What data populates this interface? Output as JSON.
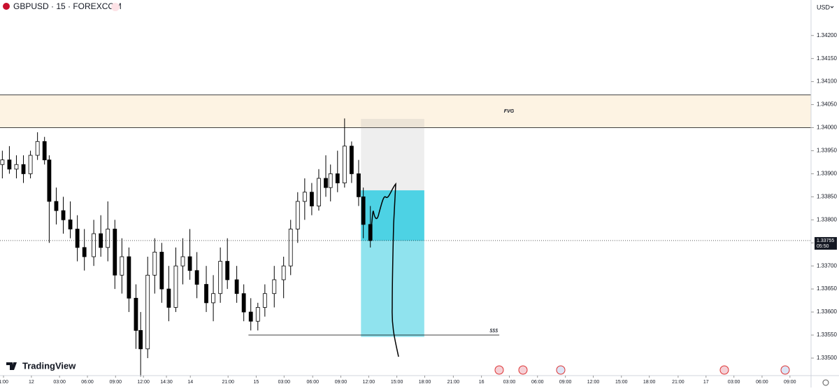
{
  "header": {
    "symbol": "GBPUSD · 15 · FOREXCOM",
    "currency": "USD",
    "brand": "TradingView"
  },
  "chart_data": {
    "type": "candlestick",
    "x": [
      1,
      4,
      7,
      10,
      13,
      16,
      19,
      21,
      24,
      27,
      30,
      33,
      36,
      40,
      43,
      46,
      49,
      52,
      55,
      58,
      60,
      63,
      66,
      69,
      72,
      75,
      78,
      81,
      84,
      88,
      91,
      94,
      97,
      101,
      104,
      107,
      110,
      113,
      117,
      121,
      124,
      127,
      130,
      133,
      136,
      139,
      141,
      144,
      147,
      150,
      153,
      155,
      158
    ],
    "open": [
      1.3392,
      1.3393,
      1.3391,
      1.3392,
      1.339,
      1.3394,
      1.3397,
      1.3393,
      1.3384,
      1.3382,
      1.338,
      1.3378,
      1.3374,
      1.3372,
      1.3377,
      1.3374,
      1.3378,
      1.3368,
      1.3372,
      1.3363,
      1.3356,
      1.3352,
      1.3368,
      1.3373,
      1.3365,
      1.3361,
      1.337,
      1.3372,
      1.3369,
      1.3366,
      1.3362,
      1.3364,
      1.3371,
      1.3367,
      1.3364,
      1.336,
      1.3358,
      1.3361,
      1.3364,
      1.3367,
      1.337,
      1.3378,
      1.3384,
      1.3386,
      1.3383,
      1.3389,
      1.3387,
      1.339,
      1.3388,
      1.3396,
      1.339,
      1.3385,
      1.3379
    ],
    "high": [
      1.3395,
      1.3396,
      1.3394,
      1.3394,
      1.3395,
      1.3399,
      1.3398,
      1.3394,
      1.3387,
      1.3385,
      1.3384,
      1.3381,
      1.3378,
      1.338,
      1.3381,
      1.3384,
      1.338,
      1.3376,
      1.3374,
      1.3366,
      1.336,
      1.3372,
      1.3376,
      1.3375,
      1.337,
      1.3374,
      1.3376,
      1.3378,
      1.3373,
      1.337,
      1.3368,
      1.3374,
      1.3376,
      1.337,
      1.3366,
      1.3363,
      1.3362,
      1.3366,
      1.337,
      1.3372,
      1.338,
      1.3386,
      1.3389,
      1.3388,
      1.3391,
      1.3394,
      1.3392,
      1.3395,
      1.3402,
      1.3397,
      1.3393,
      1.3387,
      1.3383
    ],
    "low": [
      1.3389,
      1.339,
      1.3389,
      1.3388,
      1.3389,
      1.3393,
      1.3392,
      1.3375,
      1.3379,
      1.3377,
      1.3376,
      1.3371,
      1.3369,
      1.337,
      1.3372,
      1.3371,
      1.3365,
      1.3364,
      1.336,
      1.3352,
      1.3346,
      1.335,
      1.3364,
      1.3362,
      1.3358,
      1.336,
      1.3366,
      1.3367,
      1.3363,
      1.336,
      1.3358,
      1.3362,
      1.3365,
      1.3362,
      1.3358,
      1.3356,
      1.3356,
      1.3359,
      1.3361,
      1.3363,
      1.3368,
      1.3375,
      1.338,
      1.3381,
      1.3382,
      1.3385,
      1.3384,
      1.3386,
      1.3387,
      1.3388,
      1.3383,
      1.3376,
      1.3374
    ],
    "close": [
      1.3393,
      1.3391,
      1.3392,
      1.339,
      1.3394,
      1.3397,
      1.3393,
      1.3384,
      1.3382,
      1.338,
      1.3378,
      1.3374,
      1.3372,
      1.3377,
      1.3374,
      1.3378,
      1.3368,
      1.3372,
      1.3363,
      1.3356,
      1.3352,
      1.3368,
      1.3373,
      1.3365,
      1.3361,
      1.337,
      1.3372,
      1.3369,
      1.3366,
      1.3362,
      1.3364,
      1.3371,
      1.3367,
      1.3364,
      1.336,
      1.3358,
      1.3361,
      1.3364,
      1.3367,
      1.337,
      1.3378,
      1.3384,
      1.3386,
      1.3383,
      1.3389,
      1.3387,
      1.339,
      1.3388,
      1.3396,
      1.339,
      1.3385,
      1.3379,
      1.33755
    ],
    "up_color": "#ffffff",
    "down_color": "#000000",
    "xlim": [
      0,
      346
    ],
    "xticks": [
      {
        "value": 1.5,
        "label": "1:00"
      },
      {
        "value": 13.4,
        "label": "12"
      },
      {
        "value": 25.4,
        "label": "03:00"
      },
      {
        "value": 37.3,
        "label": "06:00"
      },
      {
        "value": 49.3,
        "label": "09:00"
      },
      {
        "value": 61.2,
        "label": "12:00"
      },
      {
        "value": 71,
        "label": "14:30"
      },
      {
        "value": 81.2,
        "label": "14"
      },
      {
        "value": 97.3,
        "label": "21:00"
      },
      {
        "value": 109.3,
        "label": "15"
      },
      {
        "value": 121.2,
        "label": "03:00"
      },
      {
        "value": 133.4,
        "label": "06:00"
      },
      {
        "value": 145.4,
        "label": "09:00"
      },
      {
        "value": 157.3,
        "label": "12:00"
      },
      {
        "value": 169.3,
        "label": "15:00"
      },
      {
        "value": 181.2,
        "label": "18:00"
      },
      {
        "value": 193.4,
        "label": "21:00"
      },
      {
        "value": 205.4,
        "label": "16"
      },
      {
        "value": 217.3,
        "label": "03:00"
      },
      {
        "value": 229.3,
        "label": "06:00"
      },
      {
        "value": 241.2,
        "label": "09:00"
      },
      {
        "value": 253.1,
        "label": "12:00"
      },
      {
        "value": 265.1,
        "label": "15:00"
      },
      {
        "value": 277,
        "label": "18:00"
      },
      {
        "value": 289.3,
        "label": "21:00"
      },
      {
        "value": 301.2,
        "label": "17"
      },
      {
        "value": 313.1,
        "label": "03:00"
      },
      {
        "value": 325.1,
        "label": "06:00"
      },
      {
        "value": 337,
        "label": "09:00"
      }
    ],
    "ylim": [
      1.33462,
      1.34277
    ],
    "yticks": [
      {
        "value": 1.342,
        "label": "1.34200"
      },
      {
        "value": 1.3415,
        "label": "1.34150"
      },
      {
        "value": 1.341,
        "label": "1.34100"
      },
      {
        "value": 1.3405,
        "label": "1.34050"
      },
      {
        "value": 1.34,
        "label": "1.34000"
      },
      {
        "value": 1.3395,
        "label": "1.33950"
      },
      {
        "value": 1.339,
        "label": "1.33900"
      },
      {
        "value": 1.3385,
        "label": "1.33850"
      },
      {
        "value": 1.338,
        "label": "1.33800"
      },
      {
        "value": 1.3375,
        "label": "1.33750"
      },
      {
        "value": 1.337,
        "label": "1.33700"
      },
      {
        "value": 1.3365,
        "label": "1.33650"
      },
      {
        "value": 1.336,
        "label": "1.33600"
      },
      {
        "value": 1.3355,
        "label": "1.33550"
      },
      {
        "value": 1.335,
        "label": "1.33500"
      }
    ],
    "last_price": {
      "value": 1.33755,
      "label": "1.33755",
      "countdown": "05:50"
    },
    "fvg": {
      "label": "FVG",
      "top": 1.34071,
      "bottom": 1.34
    },
    "liquidity": {
      "label": "$$$",
      "price": 1.3355,
      "x": [
        106,
        213
      ]
    },
    "position": {
      "x": [
        154,
        181
      ],
      "stop": 1.34019,
      "entry": 1.33864,
      "target": 1.33546
    }
  }
}
